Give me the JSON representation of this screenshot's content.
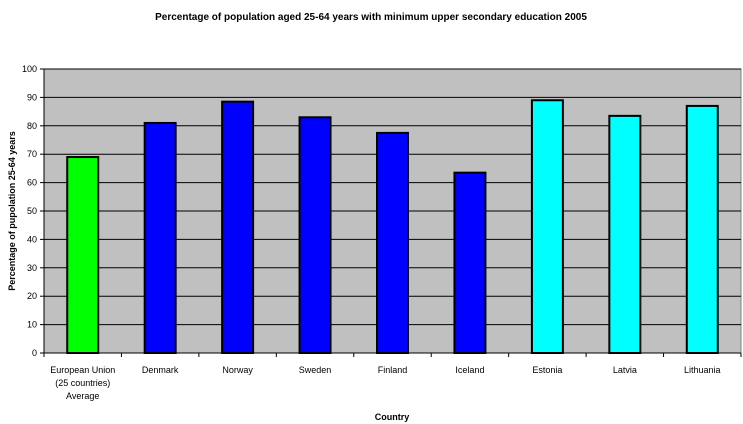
{
  "chart_data": {
    "type": "bar",
    "title": "Percentage of population aged 25-64 years with minimum upper secondary education 2005",
    "xlabel": "Country",
    "ylabel": "Percentage of pupolation 25-64 years",
    "ylim": [
      0,
      100
    ],
    "yticks": [
      0,
      10,
      20,
      30,
      40,
      50,
      60,
      70,
      80,
      90,
      100
    ],
    "grid": true,
    "legend": "none",
    "categories": [
      [
        "European Union",
        "(25 countries)",
        "Average"
      ],
      [
        "Denmark"
      ],
      [
        "Norway"
      ],
      [
        "Sweden"
      ],
      [
        "Finland"
      ],
      [
        "Iceland"
      ],
      [
        "Estonia"
      ],
      [
        "Latvia"
      ],
      [
        "Lithuania"
      ]
    ],
    "values": [
      69,
      81,
      88.5,
      83,
      77.5,
      63.5,
      89,
      83.5,
      87
    ],
    "colors": [
      "#00ff00",
      "#0000ff",
      "#0000ff",
      "#0000ff",
      "#0000ff",
      "#0000ff",
      "#00ffff",
      "#00ffff",
      "#00ffff"
    ],
    "plot_background": "#c0c0c0"
  }
}
